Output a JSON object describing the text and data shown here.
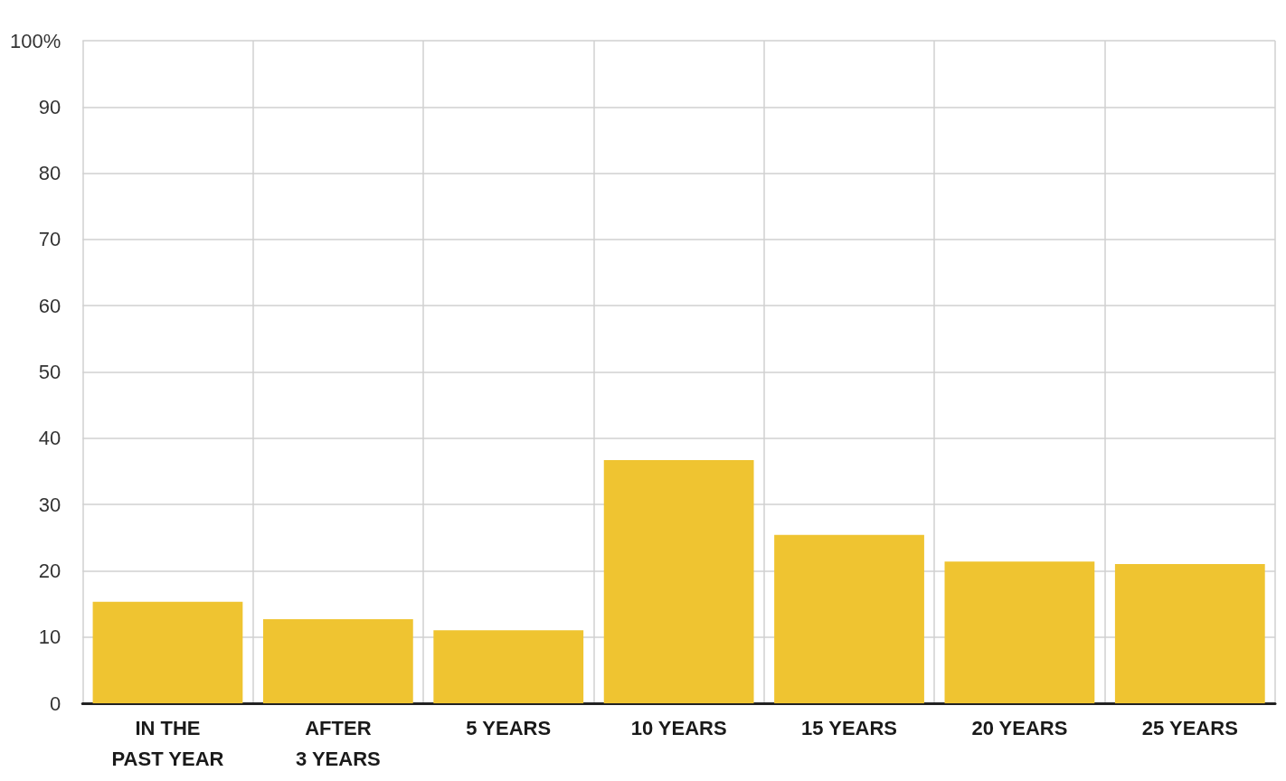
{
  "chart_data": {
    "type": "bar",
    "categories": [
      "IN THE\nPAST YEAR",
      "AFTER\n3 YEARS",
      "5 YEARS",
      "10 YEARS",
      "15 YEARS",
      "20 YEARS",
      "25 YEARS"
    ],
    "values": [
      15.3,
      12.7,
      11,
      36.7,
      25.4,
      21.4,
      21
    ],
    "color": "#efc431",
    "ylim": [
      0,
      100
    ],
    "yticks": [
      0,
      10,
      20,
      30,
      40,
      50,
      60,
      70,
      80,
      90,
      {
        "value": 100,
        "label": "100%"
      }
    ],
    "grid": true
  }
}
